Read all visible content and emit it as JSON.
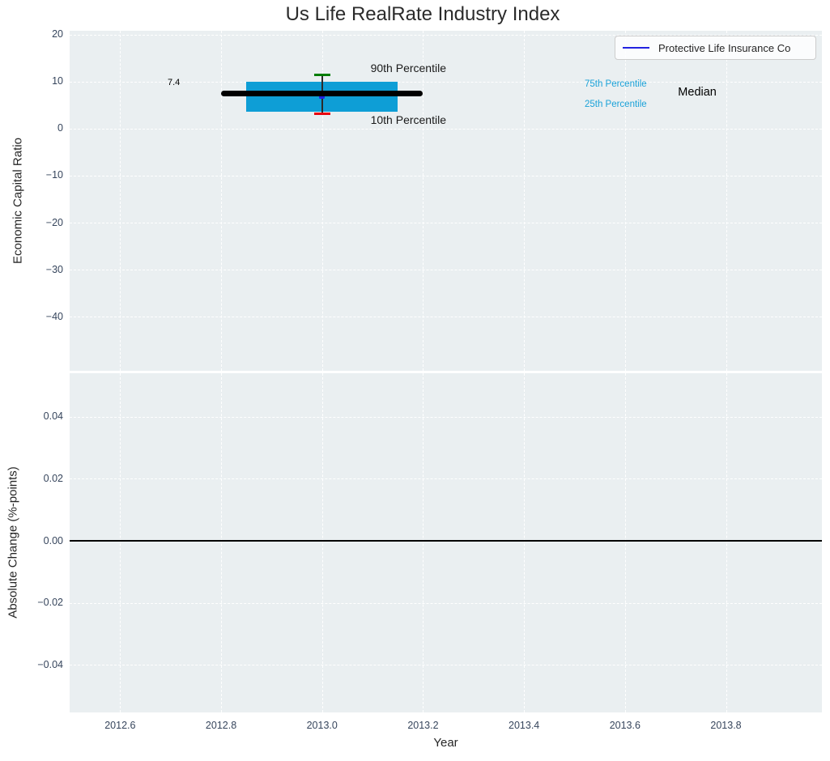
{
  "figure": {
    "title": "Us Life RealRate Industry Index"
  },
  "legend": {
    "label": "Protective Life Insurance Co"
  },
  "colors": {
    "axes_background": "#eaeff1",
    "grid": "#ffffff",
    "tick_text": "#36455c",
    "axis_label_text": "#262626",
    "title_text": "#2b2b2b",
    "box_fill": "#0e9ed6",
    "median_line": "#000000",
    "whisker_line": "#2b2b2b",
    "p90_cap": "#007d00",
    "p10_cap": "#e8000d",
    "company_line": "#2222e0",
    "percentile_label": "#1ba2d8",
    "zero_line": "#000000"
  },
  "chart_data": [
    {
      "type": "box",
      "title": "Us Life RealRate Industry Index",
      "ylabel": "Economic Capital Ratio",
      "xlim": [
        2012.5,
        2013.99
      ],
      "ylim": [
        -51.5,
        20.8
      ],
      "xticks": [
        2012.6,
        2012.8,
        2013.0,
        2013.2,
        2013.4,
        2013.6,
        2013.8
      ],
      "xtick_labels": [],
      "yticks": [
        20,
        10,
        0,
        -10,
        -20,
        -30,
        -40
      ],
      "ytick_labels": [
        "20",
        "10",
        "0",
        "−10",
        "−20",
        "−30",
        "−40"
      ],
      "grid": true,
      "legend_position": "upper right",
      "legend_entries": [
        {
          "label": "Protective Life Insurance Co",
          "color": "#2222e0"
        }
      ],
      "box": {
        "x": 2013.0,
        "box_left": 2012.85,
        "box_right": 2013.15,
        "q25": 3.5,
        "q75": 10.0,
        "p10": 3.1,
        "p90": 11.4,
        "median": 7.4,
        "median_left": 2012.8,
        "median_right": 2013.2,
        "cap_half_width": 0.016
      },
      "series": [
        {
          "name": "Protective Life Insurance Co",
          "x": [
            2013.0
          ],
          "values": [
            6.8
          ]
        }
      ],
      "annotations": [
        {
          "name": "median-value-label",
          "text": "7.4",
          "x": 2012.694,
          "y": 9.6,
          "color": "#000000",
          "size": 11
        },
        {
          "name": "p90-label",
          "text": "90th Percentile",
          "x": 2013.096,
          "y": 12.7,
          "color": "#1a1a1a",
          "size": 14
        },
        {
          "name": "p10-label",
          "text": "10th Percentile",
          "x": 2013.096,
          "y": 1.7,
          "color": "#1a1a1a",
          "size": 14
        },
        {
          "name": "p75-label",
          "text": "75th Percentile",
          "x": 2013.52,
          "y": 9.3,
          "color": "#1ba2d8",
          "size": 11.5
        },
        {
          "name": "p25-label",
          "text": "25th Percentile",
          "x": 2013.52,
          "y": 4.9,
          "color": "#1ba2d8",
          "size": 11.5
        },
        {
          "name": "median-label",
          "text": "Median",
          "x": 2013.705,
          "y": 7.5,
          "color": "#000000",
          "size": 14.5
        }
      ]
    },
    {
      "type": "line",
      "xlabel": "Year",
      "ylabel": "Absolute Change (%-points)",
      "xlim": [
        2012.5,
        2013.99
      ],
      "ylim": [
        -0.0554,
        0.0541
      ],
      "xticks": [
        2012.6,
        2012.8,
        2013.0,
        2013.2,
        2013.4,
        2013.6,
        2013.8
      ],
      "xtick_labels": [
        "2012.6",
        "2012.8",
        "2013.0",
        "2013.2",
        "2013.4",
        "2013.6",
        "2013.8"
      ],
      "yticks": [
        0.04,
        0.02,
        0,
        -0.02,
        -0.04
      ],
      "ytick_labels": [
        "0.04",
        "0.02",
        "0.00",
        "−0.02",
        "−0.04"
      ],
      "grid": true,
      "zero_line": {
        "y": 0
      }
    }
  ]
}
